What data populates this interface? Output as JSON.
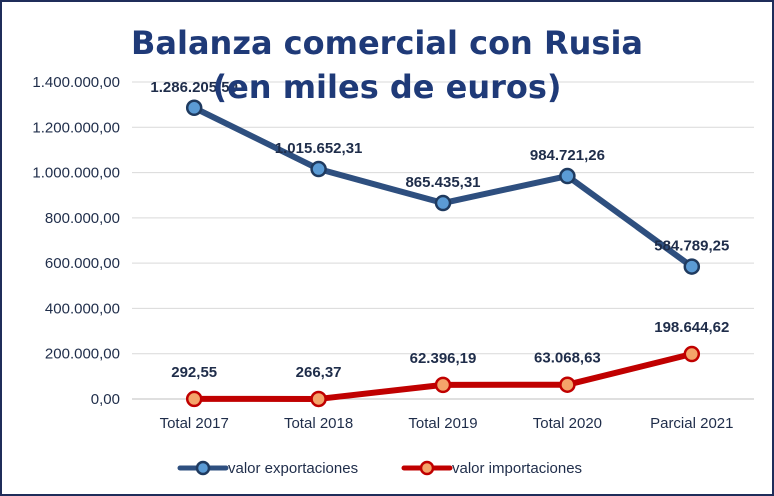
{
  "chart_data": {
    "type": "line",
    "title_lines": [
      "Balanza comercial con Rusia",
      "(en miles de euros)"
    ],
    "categories": [
      "Total 2017",
      "Total 2018",
      "Total 2019",
      "Total 2020",
      "Parcial 2021"
    ],
    "ylim": [
      0,
      1400000
    ],
    "ytick_labels": [
      "0,00",
      "200.000,00",
      "400.000,00",
      "600.000,00",
      "800.000,00",
      "1.000.000,00",
      "1.200.000,00",
      "1.400.000,00"
    ],
    "grid": true,
    "legend_position": "bottom",
    "series": [
      {
        "name": "valor exportaciones",
        "values": [
          1286205.5,
          1015652.31,
          865435.31,
          984721.26,
          584789.25
        ],
        "labels": [
          "1.286.205,50",
          "1.015.652,31",
          "865.435,31",
          "984.721,26",
          "584.789,25"
        ],
        "line_color": "#2e4f7f",
        "marker_fill": "#5b9bd5",
        "marker_edge": "#1f3a5f"
      },
      {
        "name": "valor importaciones",
        "values": [
          292.55,
          266.37,
          62396.19,
          63068.63,
          198644.62
        ],
        "labels": [
          "292,55",
          "266,37",
          "62.396,19",
          "63.068,63",
          "198.644,62"
        ],
        "line_color": "#c00000",
        "marker_fill": "#f4a46a",
        "marker_edge": "#c00000"
      }
    ]
  }
}
